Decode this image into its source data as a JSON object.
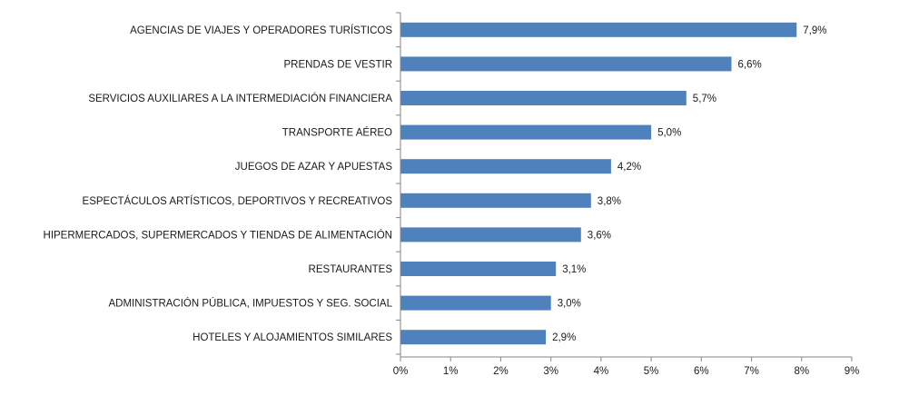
{
  "chart_data": {
    "type": "bar",
    "orientation": "horizontal",
    "title": "",
    "xlabel": "",
    "ylabel": "",
    "categories": [
      "AGENCIAS DE VIAJES Y OPERADORES TURÍSTICOS",
      "PRENDAS DE VESTIR",
      "SERVICIOS AUXILIARES A LA INTERMEDIACIÓN FINANCIERA",
      "TRANSPORTE AÉREO",
      "JUEGOS DE AZAR Y APUESTAS",
      "ESPECTÁCULOS ARTÍSTICOS, DEPORTIVOS Y RECREATIVOS",
      "HIPERMERCADOS, SUPERMERCADOS Y TIENDAS DE ALIMENTACIÓN",
      "RESTAURANTES",
      "ADMINISTRACIÓN PÚBLICA, IMPUESTOS Y SEG. SOCIAL",
      "HOTELES  Y ALOJAMIENTOS SIMILARES"
    ],
    "values": [
      7.9,
      6.6,
      5.7,
      5.0,
      4.2,
      3.8,
      3.6,
      3.1,
      3.0,
      2.9
    ],
    "value_labels": [
      "7,9%",
      "6,6%",
      "5,7%",
      "5,0%",
      "4,2%",
      "3,8%",
      "3,6%",
      "3,1%",
      "3,0%",
      "2,9%"
    ],
    "xlim": [
      0,
      9
    ],
    "x_ticks": [
      0,
      1,
      2,
      3,
      4,
      5,
      6,
      7,
      8,
      9
    ],
    "x_tick_labels": [
      "0%",
      "1%",
      "2%",
      "3%",
      "4%",
      "5%",
      "6%",
      "7%",
      "8%",
      "9%"
    ],
    "grid": false,
    "legend": "none",
    "bar_color": "#4f81bd",
    "axis_color": "#868686"
  }
}
